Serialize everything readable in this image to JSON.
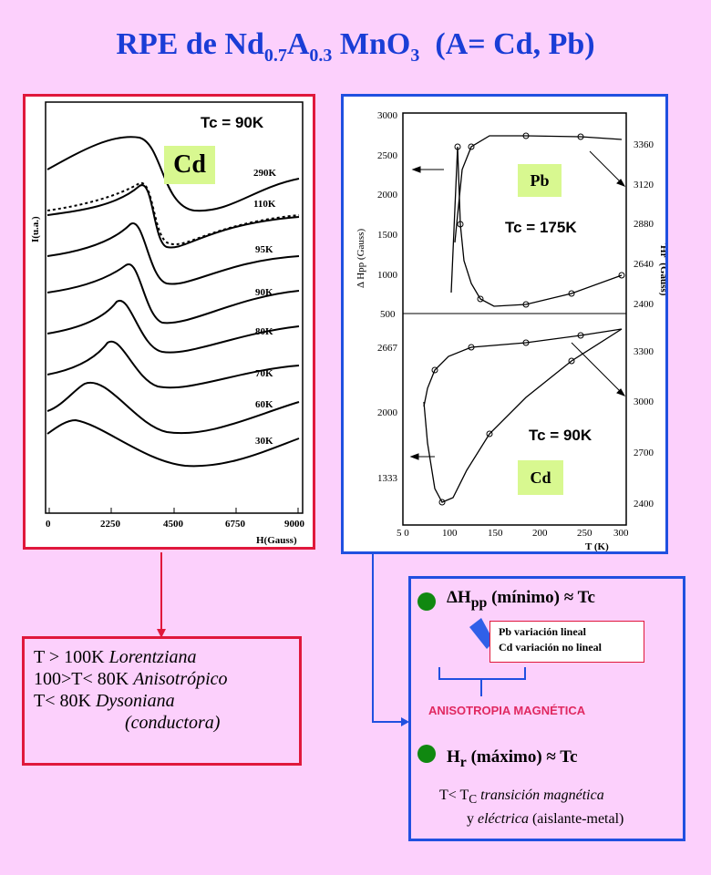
{
  "title": {
    "prefix": "RPE de Nd",
    "sub1": "0.7",
    "mid": "A",
    "sub2": "0.3",
    "mno": " MnO",
    "sub3": "3",
    "suffix": "(A= Cd, Pb)"
  },
  "cd_panel": {
    "tc": "Tc = 90K",
    "chip": "Cd",
    "ylabel": "I(u.a.)",
    "xlabel": "H(Gauss)",
    "xticks": [
      "0",
      "2250",
      "4500",
      "6750",
      "9000"
    ],
    "temps": [
      "290K",
      "110K",
      "95K",
      "90K",
      "80K",
      "70K",
      "60K",
      "30K"
    ]
  },
  "pb_panel": {
    "chip_pb": "Pb",
    "chip_cd": "Cd",
    "tc_pb": "Tc = 175K",
    "tc_cd": "Tc = 90K",
    "ylabel_left": "Δ Hpp (Gauss)",
    "ylabel_right": "'Hr' (Gauss)",
    "xlabel": "T (K)",
    "yticks_top": [
      "3000",
      "2500",
      "2000",
      "1500",
      "1000",
      "500"
    ],
    "yticks_top_right": [
      "3360",
      "3120",
      "2880",
      "2640",
      "2400"
    ],
    "yticks_bot": [
      "2667",
      "2000",
      "1333"
    ],
    "yticks_bot_right": [
      "3300",
      "3000",
      "2700",
      "2400"
    ],
    "xticks": [
      "5 0",
      "5 0",
      "100",
      "150",
      "200",
      "250",
      "300"
    ]
  },
  "left_box": {
    "line1_a": "T > 100K ",
    "line1_b": "Lorentziana",
    "line2_a": "100>T< 80K ",
    "line2_b": "Anisotrópico",
    "line3_a": "T< 80K ",
    "line3_b": "Dysoniana",
    "line4": "(conductora)"
  },
  "right_box": {
    "c1_delta": "ΔH",
    "c1_sub": "pp",
    "c1_rest": " (mínimo) ≈ Tc",
    "note1": "Pb variación lineal",
    "note2": "Cd variación no lineal",
    "anis": "ANISOTROPIA MAGNÉTICA",
    "c2_h": "H",
    "c2_sub": "r",
    "c2_rest": " (máximo) ≈ Tc",
    "t1_a": "T< T",
    "t1_sub": "C",
    "t1_b": " transición magnética",
    "t2_a": "y ",
    "t2_b": "eléctrica",
    "t2_c": " (aislante-metal)"
  },
  "colors": {
    "background": "#fcd0fc",
    "title": "#1a3dd6",
    "red": "#e0183c",
    "blue": "#2050e0",
    "chip": "#d8f890",
    "dot": "#108810"
  }
}
